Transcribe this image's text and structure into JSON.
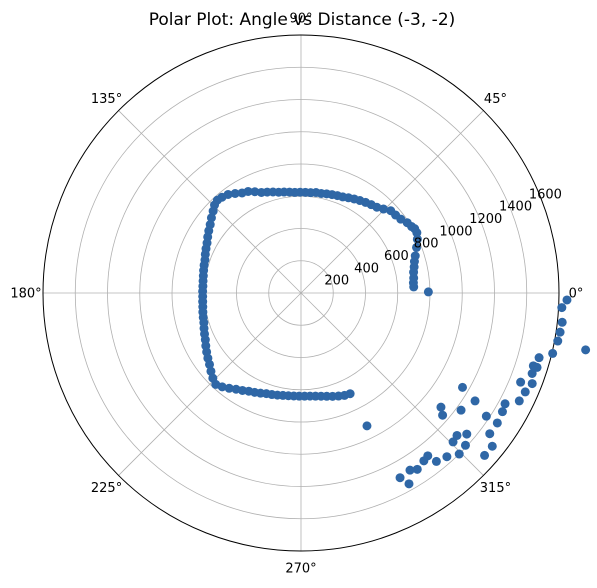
{
  "chart_data": {
    "type": "scatter",
    "projection": "polar",
    "title": "Polar Plot: Angle vs Distance (-3, -2)",
    "theta_unit": "degrees",
    "theta_ticks": [
      "0°",
      "45°",
      "90°",
      "135°",
      "180°",
      "225°",
      "270°",
      "315°"
    ],
    "r_ticks": [
      "200",
      "400",
      "600",
      "800",
      "1000",
      "1200",
      "1400",
      "1600"
    ],
    "r_values": [
      200,
      400,
      600,
      800,
      1000,
      1200,
      1400,
      1600
    ],
    "rlim": [
      0,
      1600
    ],
    "grid": true,
    "marker_color": "#2f67a6",
    "series": [
      {
        "points": [
          [
            -15.2,
            1530
          ],
          [
            -17.5,
            1535
          ],
          [
            -19.2,
            1518
          ],
          [
            -21.4,
            1540
          ],
          [
            -23.8,
            1520
          ],
          [
            -26.3,
            1510
          ],
          [
            -13.5,
            1605
          ],
          [
            -10.6,
            1620
          ],
          [
            -8.6,
            1625
          ],
          [
            -6.4,
            1630
          ],
          [
            -3.2,
            1620
          ],
          [
            -1.5,
            1650
          ],
          [
            -11.3,
            1800
          ],
          [
            -17.4,
            1510
          ],
          [
            -22.1,
            1470
          ],
          [
            -28.5,
            1440
          ],
          [
            -30.5,
            1450
          ],
          [
            -33.6,
            1380
          ],
          [
            -36.7,
            1460
          ],
          [
            -38.7,
            1520
          ],
          [
            -41.5,
            1520
          ],
          [
            -45.5,
            1400
          ],
          [
            -48.3,
            1360
          ],
          [
            -51.2,
            1340
          ],
          [
            -52.1,
            1280
          ],
          [
            -53.8,
            1290
          ],
          [
            -56.6,
            1310
          ],
          [
            -58.4,
            1290
          ],
          [
            -60.5,
            1360
          ],
          [
            -61.8,
            1300
          ],
          [
            -30.3,
            1160
          ],
          [
            -31.8,
            1270
          ],
          [
            -36.2,
            1230
          ],
          [
            -39.2,
            1120
          ],
          [
            -40.8,
            1160
          ],
          [
            -40.4,
            1350
          ],
          [
            -42.4,
            1310
          ],
          [
            -42.8,
            1390
          ],
          [
            -44.4,
            1320
          ],
          [
            -33.5,
            1460
          ],
          [
            -63.6,
            920
          ],
          [
            0.5,
            790
          ],
          [
            3.1,
            700
          ],
          [
            5.2,
            700
          ],
          [
            7.6,
            705
          ],
          [
            10.5,
            710
          ],
          [
            13.0,
            720
          ],
          [
            15.5,
            730
          ],
          [
            18.0,
            745
          ],
          [
            21.5,
            770
          ],
          [
            24.8,
            795
          ],
          [
            27.5,
            810
          ],
          [
            29.5,
            810
          ],
          [
            31.0,
            800
          ],
          [
            33.5,
            790
          ],
          [
            36.5,
            770
          ],
          [
            39.5,
            760
          ],
          [
            42.5,
            755
          ],
          [
            45.5,
            730
          ],
          [
            48.5,
            710
          ],
          [
            51.5,
            700
          ],
          [
            54.5,
            690
          ],
          [
            57.5,
            680
          ],
          [
            60.5,
            670
          ],
          [
            63.5,
            660
          ],
          [
            66.5,
            650
          ],
          [
            69.5,
            645
          ],
          [
            72.5,
            640
          ],
          [
            75.5,
            635
          ],
          [
            78.5,
            630
          ],
          [
            81.5,
            630
          ],
          [
            84.5,
            625
          ],
          [
            87.5,
            625
          ],
          [
            90.5,
            625
          ],
          [
            93.5,
            625
          ],
          [
            96.5,
            630
          ],
          [
            99.5,
            635
          ],
          [
            102.5,
            640
          ],
          [
            105.5,
            650
          ],
          [
            108.5,
            660
          ],
          [
            111.5,
            670
          ],
          [
            114.5,
            690
          ],
          [
            117.5,
            710
          ],
          [
            120.5,
            720
          ],
          [
            123.5,
            740
          ],
          [
            126.5,
            760
          ],
          [
            129.5,
            770
          ],
          [
            132.0,
            775
          ],
          [
            134.5,
            765
          ],
          [
            137.0,
            745
          ],
          [
            140.0,
            725
          ],
          [
            143.0,
            705
          ],
          [
            146.0,
            690
          ],
          [
            149.0,
            675
          ],
          [
            152.0,
            660
          ],
          [
            155.0,
            650
          ],
          [
            158.0,
            640
          ],
          [
            161.0,
            630
          ],
          [
            164.0,
            625
          ],
          [
            167.0,
            620
          ],
          [
            170.0,
            615
          ],
          [
            173.0,
            612
          ],
          [
            176.0,
            610
          ],
          [
            179.0,
            610
          ],
          [
            182.0,
            610
          ],
          [
            185.0,
            612
          ],
          [
            188.0,
            615
          ],
          [
            191.0,
            620
          ],
          [
            194.0,
            625
          ],
          [
            197.0,
            630
          ],
          [
            200.0,
            640
          ],
          [
            203.0,
            650
          ],
          [
            206.0,
            660
          ],
          [
            209.0,
            675
          ],
          [
            212.0,
            690
          ],
          [
            215.0,
            705
          ],
          [
            218.0,
            720
          ],
          [
            221.0,
            740
          ],
          [
            224.0,
            760
          ],
          [
            227.0,
            775
          ],
          [
            230.0,
            760
          ],
          [
            233.0,
            740
          ],
          [
            236.0,
            720
          ],
          [
            239.0,
            705
          ],
          [
            242.0,
            690
          ],
          [
            245.0,
            680
          ],
          [
            248.0,
            670
          ],
          [
            251.0,
            660
          ],
          [
            254.0,
            655
          ],
          [
            257.0,
            650
          ],
          [
            260.0,
            645
          ],
          [
            263.0,
            642
          ],
          [
            266.0,
            640
          ],
          [
            269.0,
            640
          ],
          [
            272.0,
            640
          ],
          [
            275.0,
            642
          ],
          [
            278.0,
            646
          ],
          [
            281.0,
            652
          ],
          [
            284.0,
            660
          ],
          [
            287.0,
            670
          ],
          [
            290.0,
            680
          ],
          [
            293.0,
            690
          ],
          [
            296.0,
            695
          ]
        ]
      }
    ]
  }
}
